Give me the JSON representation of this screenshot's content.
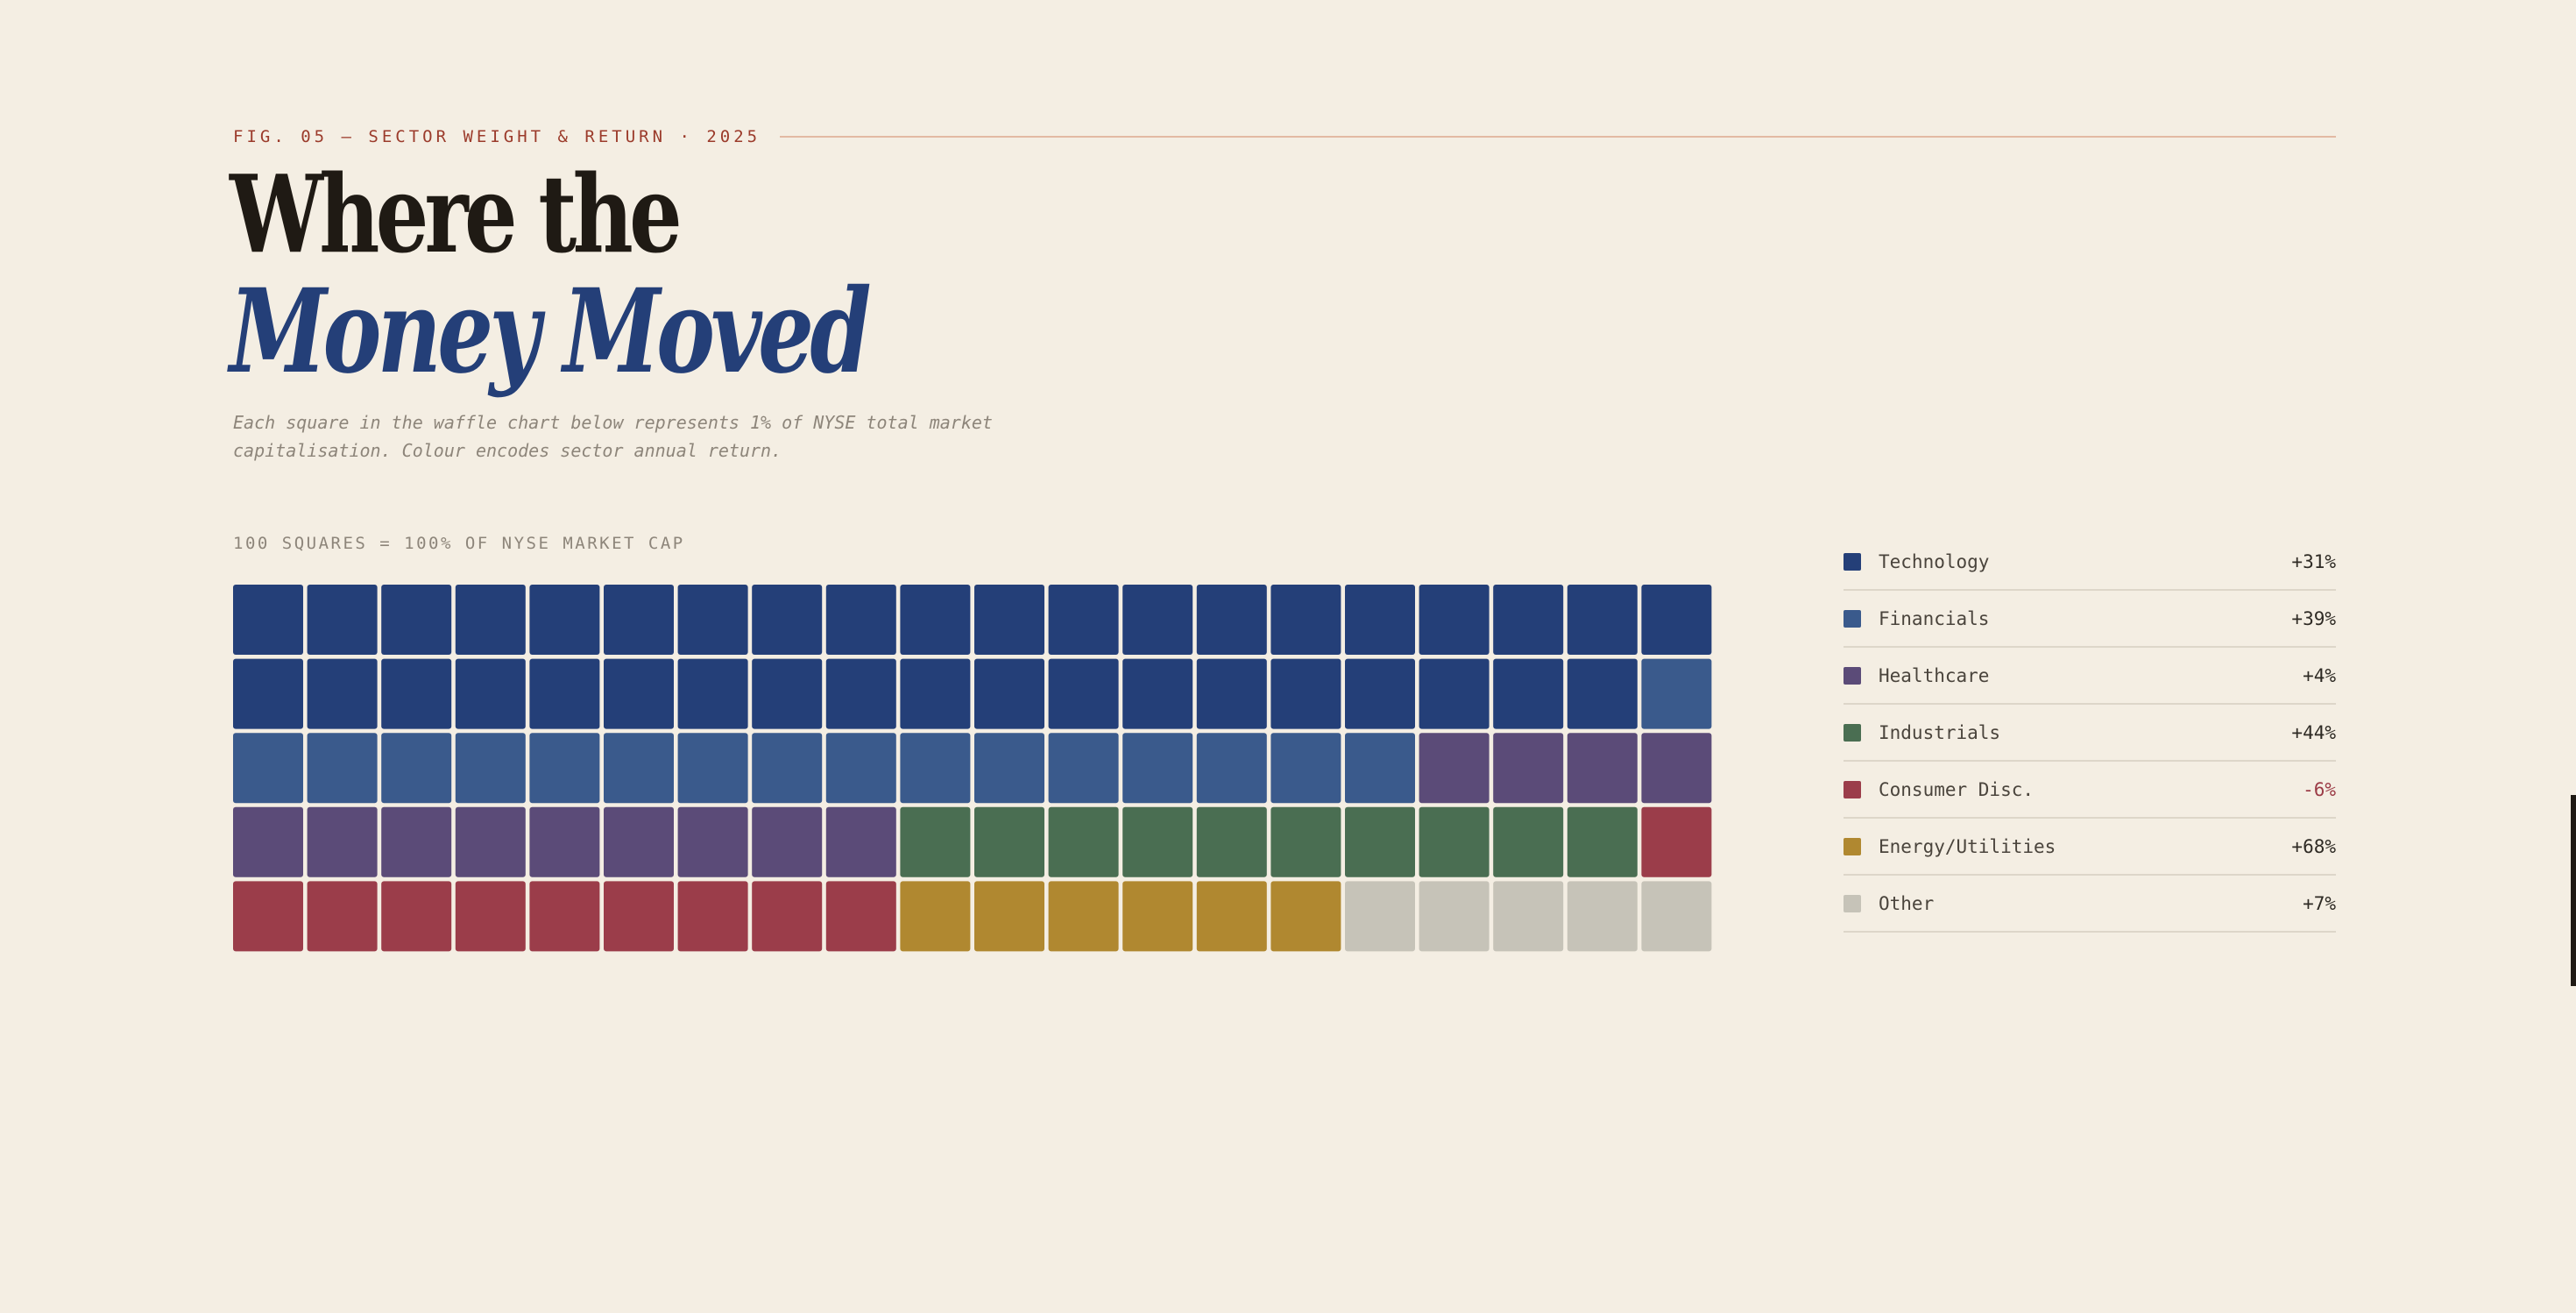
{
  "header": {
    "kicker": "FIG. 05 — SECTOR WEIGHT & RETURN · 2025",
    "title_line1": "Where the",
    "title_line2": "Money Moved",
    "subtitle": "Each square in the waffle chart below represents 1% of NYSE total market capitalisation. Colour encodes sector annual return."
  },
  "colors": {
    "background": "#f4eee3",
    "accent_red": "#9b3b2b",
    "title_blue": "#243f78"
  },
  "chart_data": {
    "type": "waffle",
    "title": "Where the Money Moved",
    "caption": "100 SQUARES = 100% OF NYSE MARKET CAP",
    "total_squares": 100,
    "columns": 20,
    "rows": 5,
    "fill_order": "row-major, left-to-right, top-to-bottom",
    "series": [
      {
        "name": "Technology",
        "squares": 39,
        "return": "+31%",
        "color": "#243f78"
      },
      {
        "name": "Financials",
        "squares": 17,
        "return": "+39%",
        "color": "#3a5a8c"
      },
      {
        "name": "Healthcare",
        "squares": 13,
        "return": "+4%",
        "color": "#5b4b78"
      },
      {
        "name": "Industrials",
        "squares": 10,
        "return": "+44%",
        "color": "#4a6e52"
      },
      {
        "name": "Consumer Disc.",
        "squares": 10,
        "return": "-6%",
        "color": "#9b3d4a"
      },
      {
        "name": "Energy/Utilities",
        "squares": 6,
        "return": "+68%",
        "color": "#b08830"
      },
      {
        "name": "Other",
        "squares": 5,
        "return": "+7%",
        "color": "#c6c3b8"
      }
    ],
    "legend_position": "right"
  }
}
